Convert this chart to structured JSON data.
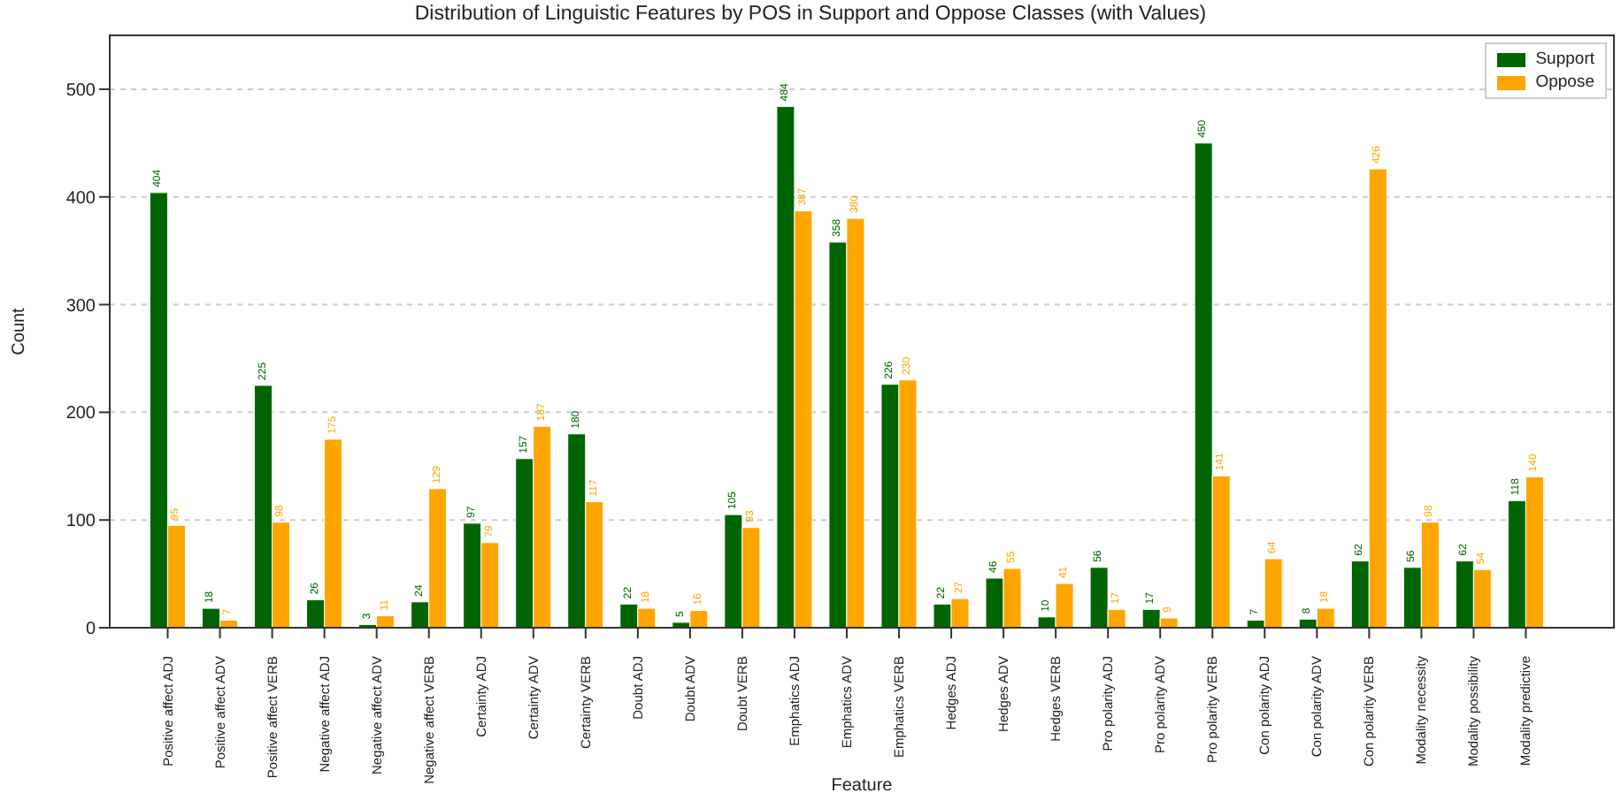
{
  "chart_data": {
    "type": "bar",
    "title": "Distribution of Linguistic Features by POS in Support and Oppose Classes (with Values)",
    "xlabel": "Feature",
    "ylabel": "Count",
    "categories": [
      "Positive affect ADJ",
      "Positive affect ADV",
      "Positive affect VERB",
      "Negative affect ADJ",
      "Negative affect ADV",
      "Negative affect VERB",
      "Certainty ADJ",
      "Certainty ADV",
      "Certainty VERB",
      "Doubt ADJ",
      "Doubt ADV",
      "Doubt VERB",
      "Emphatics ADJ",
      "Emphatics ADV",
      "Emphatics VERB",
      "Hedges ADJ",
      "Hedges ADV",
      "Hedges VERB",
      "Pro polarity ADJ",
      "Pro polarity ADV",
      "Pro polarity VERB",
      "Con polarity ADJ",
      "Con polarity ADV",
      "Con polarity VERB",
      "Modality necessity",
      "Modality possibility",
      "Modality predictive"
    ],
    "series": [
      {
        "name": "Support",
        "color": "#006400",
        "values": [
          404,
          18,
          225,
          26,
          3,
          24,
          97,
          157,
          180,
          22,
          5,
          105,
          484,
          358,
          226,
          22,
          46,
          10,
          56,
          17,
          450,
          7,
          8,
          62,
          56,
          62,
          118
        ]
      },
      {
        "name": "Oppose",
        "color": "#ffa500",
        "values": [
          95,
          7,
          98,
          175,
          11,
          129,
          79,
          187,
          117,
          18,
          16,
          93,
          387,
          380,
          230,
          27,
          55,
          41,
          17,
          9,
          141,
          64,
          18,
          426,
          98,
          54,
          140
        ]
      }
    ],
    "ylim": [
      0,
      550
    ],
    "yticks": [
      0,
      100,
      200,
      300,
      400,
      500
    ],
    "grid": "y",
    "legend": "top right",
    "data_labels": true
  }
}
